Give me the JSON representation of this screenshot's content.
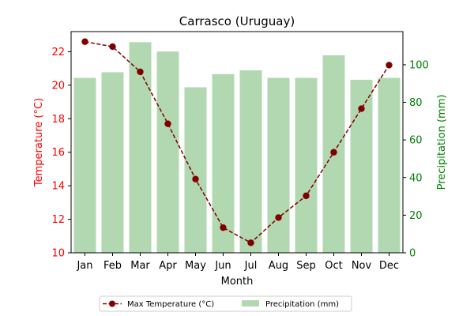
{
  "chart_data": {
    "type": "bar+line",
    "title": "Carrasco (Uruguay)",
    "xlabel": "Month",
    "categories": [
      "Jan",
      "Feb",
      "Mar",
      "Apr",
      "May",
      "Jun",
      "Jul",
      "Aug",
      "Sep",
      "Oct",
      "Nov",
      "Dec"
    ],
    "series": [
      {
        "name": "Max Temperature (°C)",
        "type": "line",
        "axis": "left",
        "color": "#800000",
        "values": [
          22.6,
          22.3,
          20.8,
          17.7,
          14.4,
          11.5,
          10.6,
          12.1,
          13.4,
          16.0,
          18.6,
          21.2
        ]
      },
      {
        "name": "Precipitation (mm)",
        "type": "bar",
        "axis": "right",
        "color": "#b2d8b2",
        "values": [
          93,
          96,
          112,
          107,
          88,
          95,
          97,
          93,
          93,
          105,
          92,
          93
        ]
      }
    ],
    "left_axis": {
      "label": "Temperature (°C)",
      "color": "#ff0000",
      "ylim": [
        10,
        23.2
      ],
      "ticks": [
        10,
        12,
        14,
        16,
        18,
        20,
        22
      ]
    },
    "right_axis": {
      "label": "Precipitation (mm)",
      "color": "#008000",
      "ylim": [
        0,
        117.6
      ],
      "ticks": [
        0,
        20,
        40,
        60,
        80,
        100
      ]
    },
    "legend": {
      "placement": "bottom-center",
      "ncol": 2
    },
    "grid": false
  }
}
